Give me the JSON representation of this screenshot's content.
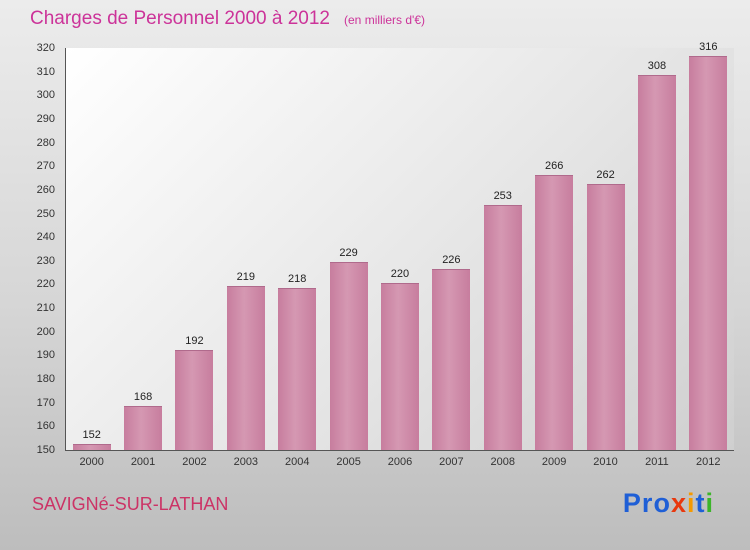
{
  "header": {
    "title": "Charges de Personnel 2000 à 2012",
    "subtitle": "(en milliers d'€)"
  },
  "footer": {
    "location": "SAVIGNé-SUR-LATHAN",
    "logo": {
      "letters": [
        "P",
        "r",
        "o",
        "x",
        "i",
        "t",
        "i"
      ],
      "colors": [
        "#1f5fd6",
        "#1f5fd6",
        "#1f5fd6",
        "#e8380d",
        "#f59a00",
        "#1f5fd6",
        "#3cb52a"
      ]
    }
  },
  "chart_data": {
    "type": "bar",
    "title": "Charges de Personnel 2000 à 2012",
    "subtitle": "(en milliers d'€)",
    "categories": [
      "2000",
      "2001",
      "2002",
      "2003",
      "2004",
      "2005",
      "2006",
      "2007",
      "2008",
      "2009",
      "2010",
      "2011",
      "2012"
    ],
    "values": [
      152,
      168,
      192,
      219,
      218,
      229,
      220,
      226,
      253,
      266,
      262,
      308,
      316
    ],
    "xlabel": "",
    "ylabel": "",
    "ylim": [
      150,
      320
    ],
    "ytick_step": 10,
    "grid": false,
    "legend": false,
    "bar_color": "#cc85a5"
  }
}
